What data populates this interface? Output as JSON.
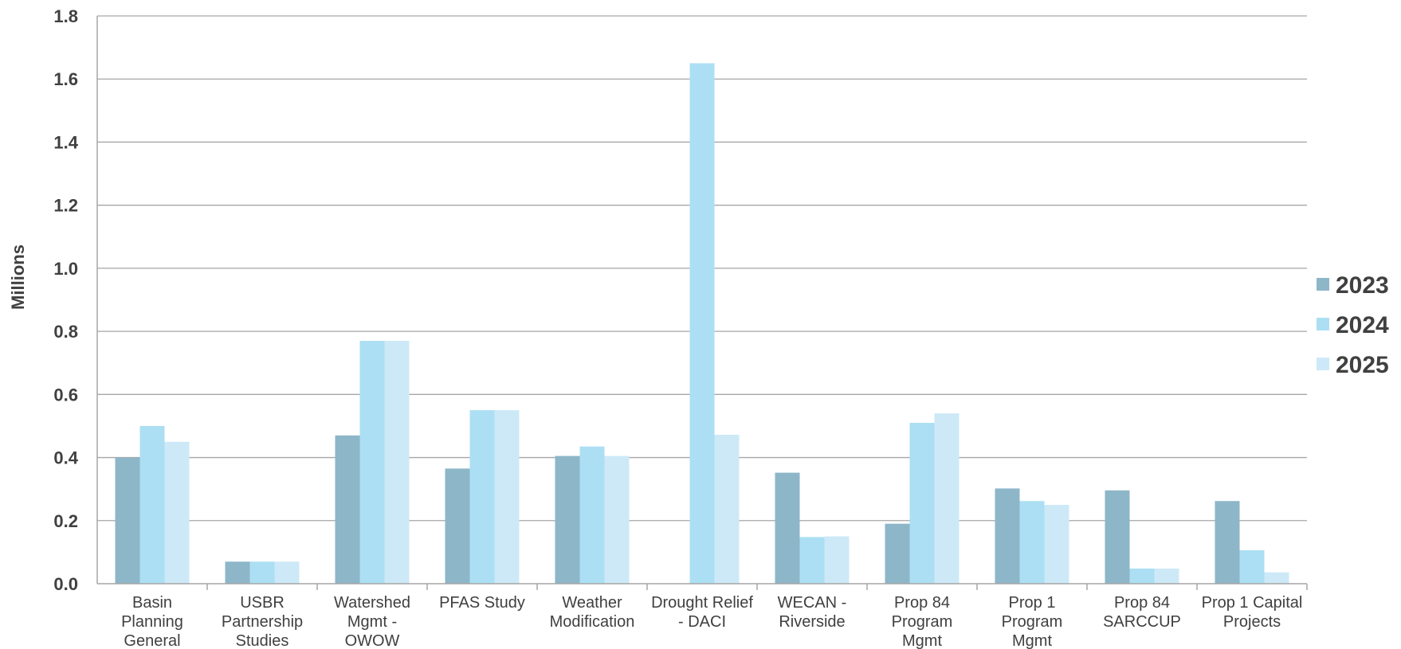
{
  "chart_data": {
    "type": "bar",
    "title": "",
    "xlabel": "",
    "ylabel": "Millions",
    "ylim": [
      0,
      1.8
    ],
    "yticks": [
      "0.0",
      "0.2",
      "0.4",
      "0.6",
      "0.8",
      "1.0",
      "1.2",
      "1.4",
      "1.6",
      "1.8"
    ],
    "grid": true,
    "legend_position": "right",
    "categories": [
      [
        "Basin",
        "Planning",
        "General"
      ],
      [
        "USBR",
        "Partnership",
        "Studies"
      ],
      [
        "Watershed",
        "Mgmt -",
        "OWOW"
      ],
      [
        "PFAS Study"
      ],
      [
        "Weather",
        "Modification"
      ],
      [
        "Drought Relief",
        "- DACI"
      ],
      [
        "WECAN -",
        "Riverside"
      ],
      [
        "Prop 84",
        "Program",
        "Mgmt"
      ],
      [
        "Prop 1",
        "Program",
        "Mgmt"
      ],
      [
        "Prop 84",
        "SARCCUP"
      ],
      [
        "Prop 1 Capital",
        "Projects"
      ]
    ],
    "series": [
      {
        "name": "2023",
        "color": "#8db6c8",
        "values": [
          0.4,
          0.07,
          0.47,
          0.365,
          0.405,
          0.0,
          0.352,
          0.19,
          0.302,
          0.296,
          0.262
        ]
      },
      {
        "name": "2024",
        "color": "#acdff3",
        "values": [
          0.5,
          0.07,
          0.77,
          0.55,
          0.435,
          1.65,
          0.148,
          0.51,
          0.262,
          0.048,
          0.106
        ]
      },
      {
        "name": "2025",
        "color": "#cde9f7",
        "values": [
          0.45,
          0.07,
          0.77,
          0.55,
          0.405,
          0.472,
          0.15,
          0.54,
          0.25,
          0.048,
          0.036
        ]
      }
    ]
  }
}
